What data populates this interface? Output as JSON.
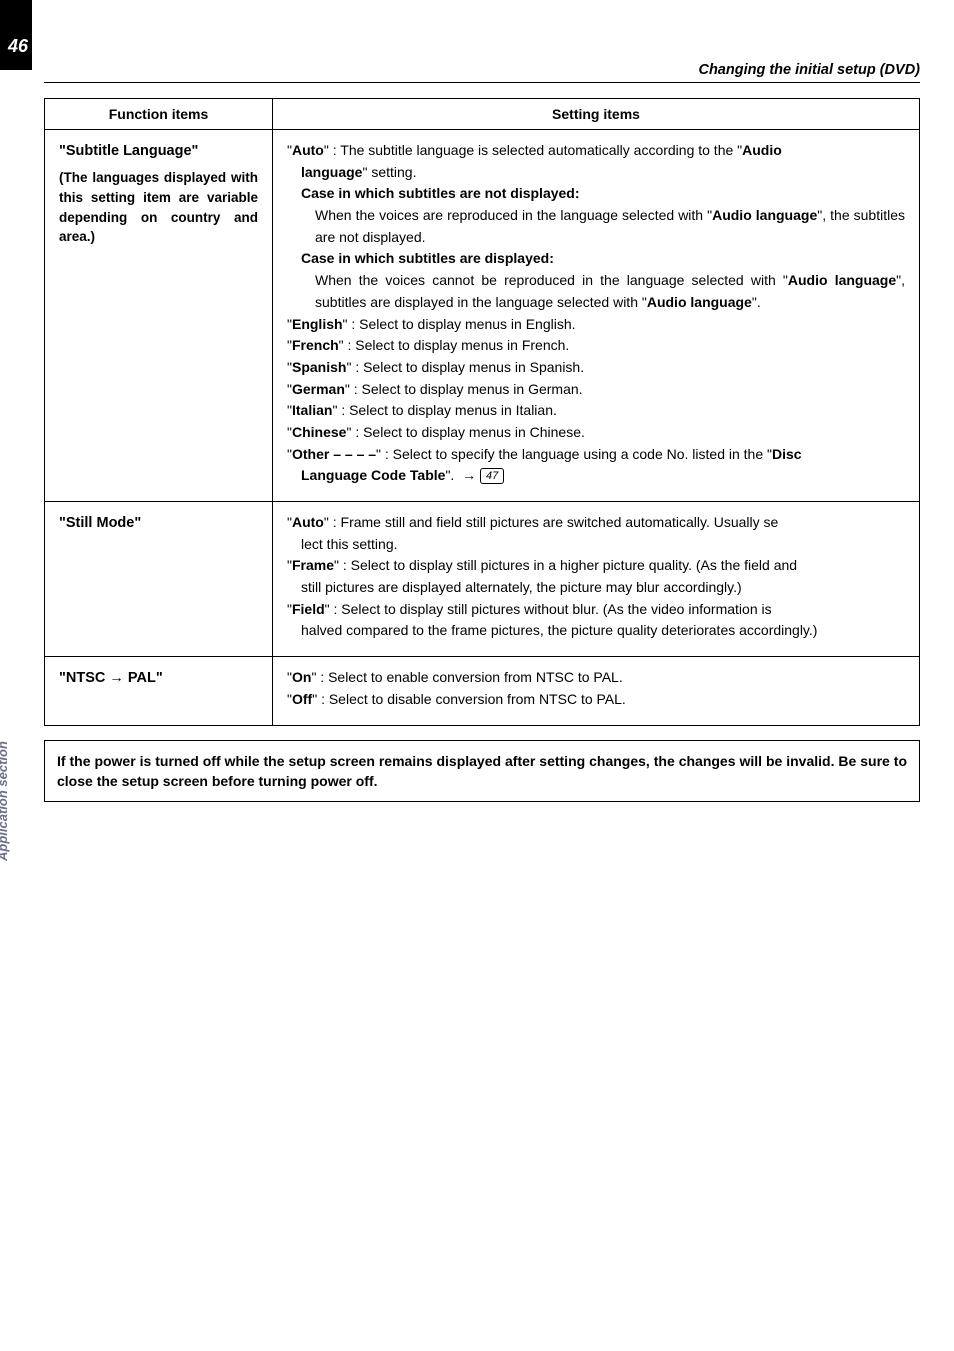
{
  "page": {
    "number": "46",
    "header_title": "Changing the initial setup (DVD)",
    "side_label": "Application section"
  },
  "table": {
    "header": {
      "col1": "Function items",
      "col2": "Setting items"
    },
    "rows": [
      {
        "func_title": "\"Subtitle Language\"",
        "func_sub": "(The languages displayed with this setting item are variable depending on country and area.)",
        "setting_html": "\"<b>Auto</b>\" : The subtitle language is selected automatically according to the \"<b>Audio</b><span class='indent'><b>language</b>\" setting.</span><span class='indent'><b>Case in which subtitles are not displayed:</b></span><span class='indent' style='padding-left:28px'>When the voices are reproduced in the language selected with \"<b>Audio language</b>\", the subtitles are not displayed.</span><span class='indent'><b>Case in which subtitles are displayed:</b></span><span class='indent' style='padding-left:28px'>When the voices cannot be reproduced in the language selected with \"<b>Audio language</b>\", subtitles are displayed in the language selected with \"<b>Audio language</b>\".</span>\"<b>English</b>\" : Select to display menus in English.<br>\"<b>French</b>\" : Select to display menus in French.<br>\"<b>Spanish</b>\" : Select to display menus in Spanish.<br>\"<b>German</b>\" : Select to display menus in German.<br>\"<b>Italian</b>\" : Select to display menus in Italian.<br>\"<b>Chinese</b>\" : Select to display menus in Chinese.<br>\"<b>Other – – – –</b>\" : Select to specify the language using a code No. listed in the \"<b>Disc</b><span class='indent'><b>Language Code Table</b>\".&nbsp;&nbsp;<span class='arrow-ref'>→</span> <span class='page-ref'>47</span></span>"
      },
      {
        "func_title": "\"Still Mode\"",
        "func_sub": "",
        "setting_html": "\"<b>Auto</b>\" : Frame still and field still pictures are switched automatically. Usually se<span class='indent'>lect this setting.</span>\"<b>Frame</b>\" : Select to display still pictures in a higher picture quality. (As the field and<span class='indent'>still pictures are displayed alternately, the picture may blur accordingly.)</span>\"<b>Field</b>\" : Select to display still pictures without blur. (As the video information is<span class='indent'>halved compared to the frame pictures, the picture quality deteriorates accordingly.)</span>"
      },
      {
        "func_title": "\"NTSC → PAL\"",
        "func_sub": "",
        "setting_html": "\"<b>On</b>\" : Select to enable conversion from NTSC to PAL.<br>\"<b>Off</b>\" : Select to disable conversion from NTSC to PAL."
      }
    ]
  },
  "note": "If the power is turned off while the setup screen remains displayed after setting changes, the changes will be invalid. Be sure to close the setup screen before turning power off."
}
